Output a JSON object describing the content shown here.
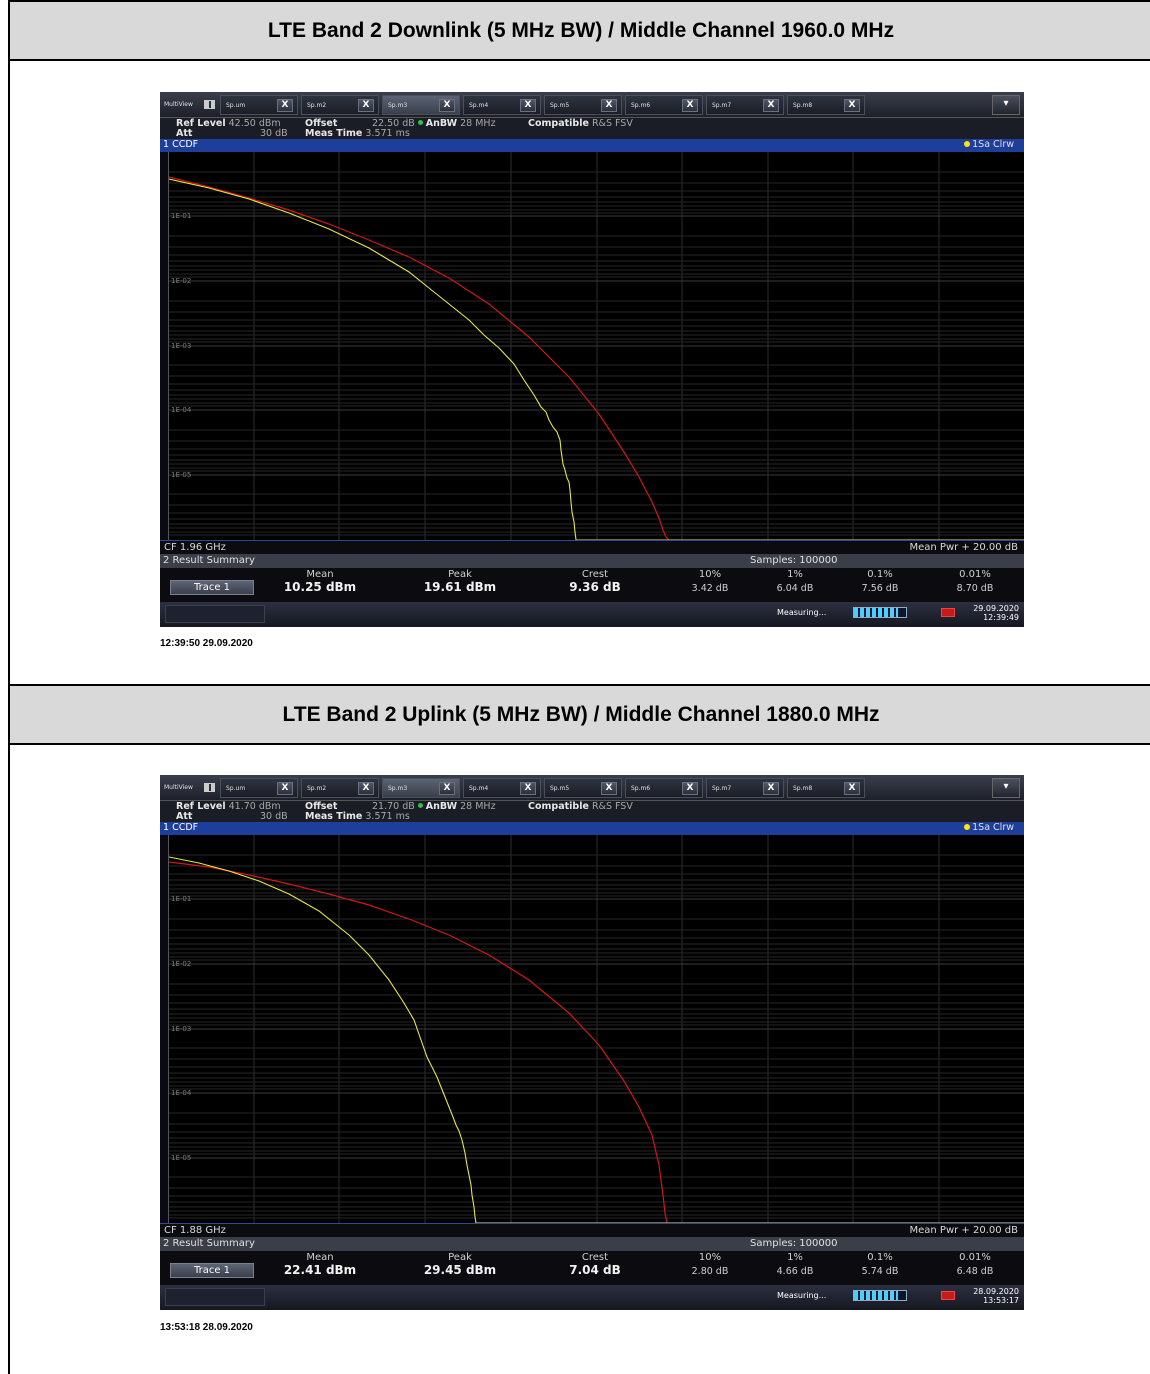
{
  "sections": [
    {
      "header": "LTE Band 2 Downlink (5 MHz BW) / Middle Channel 1960.0 MHz",
      "tabs": {
        "multiview": "MultiView",
        "items": [
          "Sp.um",
          "Sp.m2",
          "Sp.m3",
          "Sp.m4",
          "Sp.m5",
          "Sp.m6",
          "Sp.m7",
          "Sp.m8"
        ],
        "close_glyph": "X",
        "active_index": 2,
        "corner_glyph": "▾"
      },
      "info": {
        "ref_level_label": "Ref Level",
        "ref_level_value": "42.50 dBm",
        "att_label": "Att",
        "att_value": "30 dB",
        "offset_label": "Offset",
        "offset_value": "22.50 dB",
        "anbw_label": "AnBW",
        "anbw_value": "28 MHz",
        "meas_time_label": "Meas Time",
        "meas_time_value": "3.571 ms",
        "compatible_label": "Compatible",
        "compatible_value": "R&S FSV"
      },
      "ccdf_title": "1 CCDF",
      "trace_indicator": "1Sa Clrw",
      "cf": "CF 1.96 GHz",
      "mean_pwr": "Mean Pwr + 20.00 dB",
      "result_summary": "2 Result Summary",
      "samples": "Samples: 100000",
      "columns": {
        "mean": "Mean",
        "peak": "Peak",
        "crest": "Crest",
        "p10": "10%",
        "p1": "1%",
        "p01": "0.1%",
        "p001": "0.01%"
      },
      "trace_label": "Trace 1",
      "values": {
        "mean": "10.25 dBm",
        "peak": "19.61 dBm",
        "crest": "9.36 dB",
        "p10": "3.42 dB",
        "p1": "6.04 dB",
        "p01": "7.56 dB",
        "p001": "8.70 dB"
      },
      "status": {
        "measuring": "Measuring...",
        "progress_fraction": 0.85,
        "date": "29.09.2020",
        "time": "12:39:49"
      },
      "timestamp": "12:39:50 29.09.2020",
      "yticks": [
        "1E-01",
        "1E-02",
        "1E-03",
        "1E-04",
        "1E-05"
      ]
    },
    {
      "header": "LTE Band 2 Uplink (5 MHz BW) / Middle Channel 1880.0 MHz",
      "tabs": {
        "multiview": "MultiView",
        "items": [
          "Sp.um",
          "Sp.m2",
          "Sp.m3",
          "Sp.m4",
          "Sp.m5",
          "Sp.m6",
          "Sp.m7",
          "Sp.m8"
        ],
        "close_glyph": "X",
        "active_index": 2,
        "corner_glyph": "▾"
      },
      "info": {
        "ref_level_label": "Ref Level",
        "ref_level_value": "41.70 dBm",
        "att_label": "Att",
        "att_value": "30 dB",
        "offset_label": "Offset",
        "offset_value": "21.70 dB",
        "anbw_label": "AnBW",
        "anbw_value": "28 MHz",
        "meas_time_label": "Meas Time",
        "meas_time_value": "3.571 ms",
        "compatible_label": "Compatible",
        "compatible_value": "R&S FSV"
      },
      "ccdf_title": "1 CCDF",
      "trace_indicator": "1Sa Clrw",
      "cf": "CF 1.88 GHz",
      "mean_pwr": "Mean Pwr + 20.00 dB",
      "result_summary": "2 Result Summary",
      "samples": "Samples: 100000",
      "columns": {
        "mean": "Mean",
        "peak": "Peak",
        "crest": "Crest",
        "p10": "10%",
        "p1": "1%",
        "p01": "0.1%",
        "p001": "0.01%"
      },
      "trace_label": "Trace 1",
      "values": {
        "mean": "22.41 dBm",
        "peak": "29.45 dBm",
        "crest": "7.04 dB",
        "p10": "2.80 dB",
        "p1": "4.66 dB",
        "p01": "5.74 dB",
        "p001": "6.48 dB"
      },
      "status": {
        "measuring": "Measuring...",
        "progress_fraction": 0.85,
        "date": "28.09.2020",
        "time": "13:53:17"
      },
      "timestamp": "13:53:18 28.09.2020",
      "yticks": [
        "1E-01",
        "1E-02",
        "1E-03",
        "1E-04",
        "1E-05"
      ]
    }
  ],
  "colors": {
    "measured_trace": "#e6e64a",
    "reference_trace": "#d01818",
    "ccdf_bar": "#1e3e9c",
    "header_bg": "#d9d9d9"
  }
}
